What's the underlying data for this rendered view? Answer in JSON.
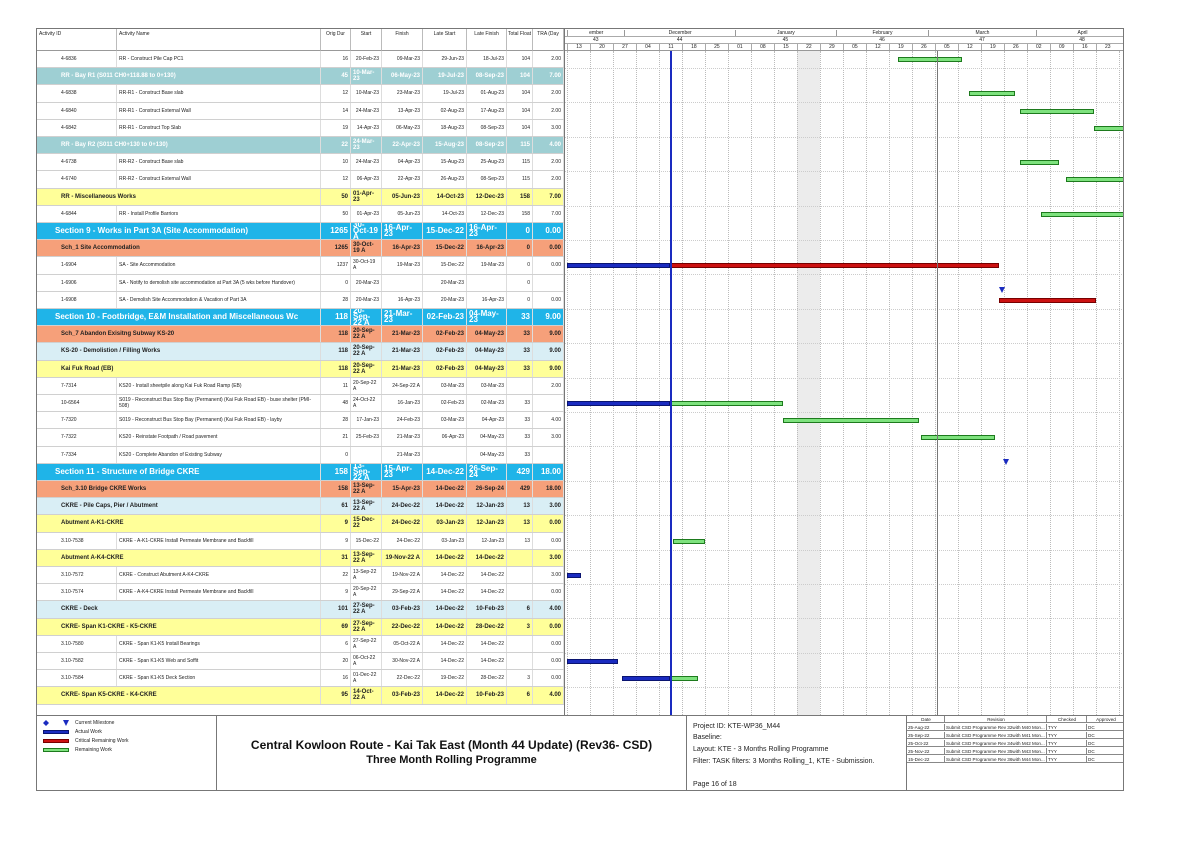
{
  "columns": [
    "Activity ID",
    "Activity Name",
    "Orig Dur",
    "Start",
    "Finish",
    "Late Start",
    "Late Finish",
    "Total Float",
    "TRA (Day"
  ],
  "timeline": {
    "months": [
      "ember",
      "December",
      "January",
      "February",
      "March",
      "April"
    ],
    "weeks": [
      "43",
      "44",
      "45",
      "46",
      "47",
      "48"
    ],
    "days": [
      "13",
      "20",
      "27",
      "04",
      "11",
      "18",
      "25",
      "01",
      "08",
      "15",
      "22",
      "29",
      "05",
      "12",
      "19",
      "26",
      "05",
      "12",
      "19",
      "26",
      "02",
      "09",
      "16",
      "23"
    ]
  },
  "rows": [
    {
      "type": "task",
      "id": "4-6836",
      "name": "RR - Construct Pile Cap PC1",
      "dur": "16",
      "start": "20-Feb-23",
      "finish": "09-Mar-23",
      "ls": "29-Jun-23",
      "lf": "18-Jul-23",
      "tf": "104",
      "tra": "2.00"
    },
    {
      "type": "teal",
      "name": "RR - Bay R1 (S011 CH0+118.88 to 0+130)",
      "dur": "45",
      "start": "10-Mar-23",
      "finish": "06-May-23",
      "ls": "19-Jul-23",
      "lf": "08-Sep-23",
      "tf": "104",
      "tra": "7.00"
    },
    {
      "type": "task",
      "id": "4-6838",
      "name": "RR-R1 - Construct Base slab",
      "dur": "12",
      "start": "10-Mar-23",
      "finish": "23-Mar-23",
      "ls": "19-Jul-23",
      "lf": "01-Aug-23",
      "tf": "104",
      "tra": "2.00"
    },
    {
      "type": "task",
      "id": "4-6840",
      "name": "RR-R1 - Construct External Wall",
      "dur": "14",
      "start": "24-Mar-23",
      "finish": "13-Apr-23",
      "ls": "02-Aug-23",
      "lf": "17-Aug-23",
      "tf": "104",
      "tra": "2.00"
    },
    {
      "type": "task",
      "id": "4-6842",
      "name": "RR-R1 - Construct Top Slab",
      "dur": "19",
      "start": "14-Apr-23",
      "finish": "06-May-23",
      "ls": "18-Aug-23",
      "lf": "08-Sep-23",
      "tf": "104",
      "tra": "3.00"
    },
    {
      "type": "teal",
      "name": "RR - Bay R2 (S011 CH0+130 to 0+130)",
      "dur": "22",
      "start": "24-Mar-23",
      "finish": "22-Apr-23",
      "ls": "15-Aug-23",
      "lf": "08-Sep-23",
      "tf": "115",
      "tra": "4.00"
    },
    {
      "type": "task",
      "id": "4-6738",
      "name": "RR-R2 - Construct Base slab",
      "dur": "10",
      "start": "24-Mar-23",
      "finish": "04-Apr-23",
      "ls": "15-Aug-23",
      "lf": "25-Aug-23",
      "tf": "115",
      "tra": "2.00"
    },
    {
      "type": "task",
      "id": "4-6740",
      "name": "RR-R2 - Construct External Wall",
      "dur": "12",
      "start": "06-Apr-23",
      "finish": "22-Apr-23",
      "ls": "26-Aug-23",
      "lf": "08-Sep-23",
      "tf": "115",
      "tra": "2.00"
    },
    {
      "type": "yel",
      "name": "RR - Miscellaneous Works",
      "dur": "50",
      "start": "01-Apr-23",
      "finish": "05-Jun-23",
      "ls": "14-Oct-23",
      "lf": "12-Dec-23",
      "tf": "158",
      "tra": "7.00"
    },
    {
      "type": "task",
      "id": "4-6844",
      "name": "RR - Install Profile Barriors",
      "dur": "50",
      "start": "01-Apr-23",
      "finish": "05-Jun-23",
      "ls": "14-Oct-23",
      "lf": "12-Dec-23",
      "tf": "158",
      "tra": "7.00"
    },
    {
      "type": "sec",
      "name": "Section 9 - Works in Part 3A (Site Accommodation)",
      "dur": "1265",
      "start": "30-Oct-19 A",
      "finish": "16-Apr-23",
      "ls": "15-Dec-22",
      "lf": "16-Apr-23",
      "tf": "0",
      "tra": "0.00"
    },
    {
      "type": "sch",
      "name": "Sch_1 Site Accommodation",
      "dur": "1265",
      "start": "30-Oct-19 A",
      "finish": "16-Apr-23",
      "ls": "15-Dec-22",
      "lf": "16-Apr-23",
      "tf": "0",
      "tra": "0.00"
    },
    {
      "type": "task",
      "id": "1-6904",
      "name": "SA - Site Accommodation",
      "dur": "1237",
      "start": "30-Oct-19 A",
      "finish": "19-Mar-23",
      "ls": "15-Dec-22",
      "lf": "19-Mar-23",
      "tf": "0",
      "tra": "0.00"
    },
    {
      "type": "task",
      "id": "1-6906",
      "name": "SA - Notify to demolish site accommodation at Part 3A (5 wks before Handover)",
      "dur": "0",
      "start": "20-Mar-23",
      "finish": "",
      "ls": "20-Mar-23",
      "lf": "",
      "tf": "0",
      "tra": ""
    },
    {
      "type": "task",
      "id": "1-6908",
      "name": "SA - Demolish Site Accommodation & Vacation of Part 3A",
      "dur": "28",
      "start": "20-Mar-23",
      "finish": "16-Apr-23",
      "ls": "20-Mar-23",
      "lf": "16-Apr-23",
      "tf": "0",
      "tra": "0.00"
    },
    {
      "type": "sec",
      "name": "Section 10 - Footbridge, E&M Installation and Miscellaneous Wc",
      "dur": "118",
      "start": "20-Sep-22 A",
      "finish": "21-Mar-23",
      "ls": "02-Feb-23",
      "lf": "04-May-23",
      "tf": "33",
      "tra": "9.00"
    },
    {
      "type": "sch",
      "name": "Sch_7 Abandon Exisitng Subway KS-20",
      "dur": "118",
      "start": "20-Sep-22 A",
      "finish": "21-Mar-23",
      "ls": "02-Feb-23",
      "lf": "04-May-23",
      "tf": "33",
      "tra": "9.00"
    },
    {
      "type": "sub",
      "name": "KS-20 - Demolistion / Filling Works",
      "dur": "118",
      "start": "20-Sep-22 A",
      "finish": "21-Mar-23",
      "ls": "02-Feb-23",
      "lf": "04-May-23",
      "tf": "33",
      "tra": "9.00"
    },
    {
      "type": "yel",
      "name": "Kai Fuk Road (EB)",
      "dur": "118",
      "start": "20-Sep-22 A",
      "finish": "21-Mar-23",
      "ls": "02-Feb-23",
      "lf": "04-May-23",
      "tf": "33",
      "tra": "9.00"
    },
    {
      "type": "task",
      "id": "7-7314",
      "name": "KS20 - Install sheetpile along Kai Fuk Road Ramp (EB)",
      "dur": "11",
      "start": "20-Sep-22 A",
      "finish": "24-Sep-22 A",
      "ls": "03-Mar-23",
      "lf": "03-Mar-23",
      "tf": "",
      "tra": "2.00"
    },
    {
      "type": "task",
      "id": "10-6564",
      "name": "S019 - Reconstruct Bus Stop Bay (Permanent) (Kai Fuk Road EB) - buse shelter (PMI-508)",
      "dur": "48",
      "start": "24-Oct-22 A",
      "finish": "16-Jan-23",
      "ls": "02-Feb-23",
      "lf": "02-Mar-23",
      "tf": "33",
      "tra": ""
    },
    {
      "type": "task",
      "id": "7-7320",
      "name": "S019 - Reconstruct Bus Stop Bay (Permanent) (Kai Fuk Road EB) - layby",
      "dur": "28",
      "start": "17-Jan-23",
      "finish": "24-Feb-23",
      "ls": "03-Mar-23",
      "lf": "04-Apr-23",
      "tf": "33",
      "tra": "4.00"
    },
    {
      "type": "task",
      "id": "7-7322",
      "name": "KS20 - Reinstate Footpath / Road pavement",
      "dur": "21",
      "start": "25-Feb-23",
      "finish": "21-Mar-23",
      "ls": "06-Apr-23",
      "lf": "04-May-23",
      "tf": "33",
      "tra": "3.00"
    },
    {
      "type": "task",
      "id": "7-7334",
      "name": "KS20 - Complete Abandon of Existing Subway",
      "dur": "0",
      "start": "",
      "finish": "21-Mar-23",
      "ls": "",
      "lf": "04-May-23",
      "tf": "33",
      "tra": ""
    },
    {
      "type": "sec",
      "name": "Section 11 - Structure of Bridge CKRE",
      "dur": "158",
      "start": "13-Sep-22 A",
      "finish": "15-Apr-23",
      "ls": "14-Dec-22",
      "lf": "26-Sep-24",
      "tf": "429",
      "tra": "18.00"
    },
    {
      "type": "sch",
      "name": "Sch_3.10 Bridge CKRE Works",
      "dur": "158",
      "start": "13-Sep-22 A",
      "finish": "15-Apr-23",
      "ls": "14-Dec-22",
      "lf": "26-Sep-24",
      "tf": "429",
      "tra": "18.00"
    },
    {
      "type": "sub",
      "name": "CKRE - Pile Caps, Pier / Abutment",
      "dur": "61",
      "start": "13-Sep-22 A",
      "finish": "24-Dec-22",
      "ls": "14-Dec-22",
      "lf": "12-Jan-23",
      "tf": "13",
      "tra": "3.00"
    },
    {
      "type": "yel",
      "name": "Abutment A-K1-CKRE",
      "dur": "9",
      "start": "15-Dec-22",
      "finish": "24-Dec-22",
      "ls": "03-Jan-23",
      "lf": "12-Jan-23",
      "tf": "13",
      "tra": "0.00"
    },
    {
      "type": "task",
      "id": "3.10-7538",
      "name": "CKRE - A-K1-CKRE Install Permeate Membrane and Backfill",
      "dur": "9",
      "start": "15-Dec-22",
      "finish": "24-Dec-22",
      "ls": "03-Jan-23",
      "lf": "12-Jan-23",
      "tf": "13",
      "tra": "0.00"
    },
    {
      "type": "yel",
      "name": "Abutment A-K4-CKRE",
      "dur": "31",
      "start": "13-Sep-22 A",
      "finish": "19-Nov-22 A",
      "ls": "14-Dec-22",
      "lf": "14-Dec-22",
      "tf": "",
      "tra": "3.00"
    },
    {
      "type": "task",
      "id": "3.10-7572",
      "name": "CKRE - Construct Abutment A-K4-CKRE",
      "dur": "22",
      "start": "13-Sep-22 A",
      "finish": "19-Nov-22 A",
      "ls": "14-Dec-22",
      "lf": "14-Dec-22",
      "tf": "",
      "tra": "3.00"
    },
    {
      "type": "task",
      "id": "3.10-7574",
      "name": "CKRE - A-K4-CKRE Install Permeate Membrane and Backfill",
      "dur": "9",
      "start": "20-Sep-22 A",
      "finish": "29-Sep-22 A",
      "ls": "14-Dec-22",
      "lf": "14-Dec-22",
      "tf": "",
      "tra": "0.00"
    },
    {
      "type": "sub",
      "name": "CKRE - Deck",
      "dur": "101",
      "start": "27-Sep-22 A",
      "finish": "03-Feb-23",
      "ls": "14-Dec-22",
      "lf": "10-Feb-23",
      "tf": "6",
      "tra": "4.00"
    },
    {
      "type": "yel",
      "name": "CKRE- Span K1-CKRE - K5-CKRE",
      "dur": "69",
      "start": "27-Sep-22 A",
      "finish": "22-Dec-22",
      "ls": "14-Dec-22",
      "lf": "28-Dec-22",
      "tf": "3",
      "tra": "0.00"
    },
    {
      "type": "task",
      "id": "3.10-7580",
      "name": "CKRE - Span K1-K5 Install Bearings",
      "dur": "6",
      "start": "27-Sep-22 A",
      "finish": "05-Oct-22 A",
      "ls": "14-Dec-22",
      "lf": "14-Dec-22",
      "tf": "",
      "tra": "0.00"
    },
    {
      "type": "task",
      "id": "3.10-7582",
      "name": "CKRE - Span K1-K5 Web and Soffit",
      "dur": "20",
      "start": "06-Oct-22 A",
      "finish": "30-Nov-22 A",
      "ls": "14-Dec-22",
      "lf": "14-Dec-22",
      "tf": "",
      "tra": "0.00"
    },
    {
      "type": "task",
      "id": "3.10-7584",
      "name": "CKRE - Span K1-K5 Deck Section",
      "dur": "16",
      "start": "01-Dec-22 A",
      "finish": "22-Dec-22",
      "ls": "19-Dec-22",
      "lf": "28-Dec-22",
      "tf": "3",
      "tra": "0.00"
    },
    {
      "type": "yel",
      "name": "CKRE- Span K5-CKRE - K4-CKRE",
      "dur": "95",
      "start": "14-Oct-22 A",
      "finish": "03-Feb-23",
      "ls": "14-Dec-22",
      "lf": "10-Feb-23",
      "tf": "6",
      "tra": "4.00"
    }
  ],
  "legend": [
    "Current Milestone",
    "Actual Work",
    "Critical Remaining Work",
    "Remaining Work"
  ],
  "title": {
    "line1": "Central Kowloon Route - Kai Tak East (Month 44 Update) (Rev36- CSD)",
    "line2": "Three Month Rolling Programme"
  },
  "info": {
    "project": "Project ID: KTE-WP36_M44",
    "baseline": "Baseline:",
    "layout": "Layout: KTE - 3 Months Rolling Programme",
    "filter": "Filter: TASK filters: 3 Months Rolling_1, KTE - Submission.",
    "page": "Page 16 of 18"
  },
  "revision": {
    "headers": [
      "Date",
      "Revision",
      "Checked",
      "Approved"
    ],
    "rows": [
      [
        "25-Aug-22",
        "Submit CSD Programme Rev 32with M40 Mon...",
        "TYY",
        "DC"
      ],
      [
        "25-Sep-22",
        "Submit CSD Programme Rev 33with M41 Mon...",
        "TYY",
        "DC"
      ],
      [
        "25-Oct-22",
        "Submit CSD Programme Rev 34with M42 Mon...",
        "TYY",
        "DC"
      ],
      [
        "25-Nov-22",
        "Submit CSD Programme Rev 35with M43 Mon...",
        "TYY",
        "DC"
      ],
      [
        "15-Dec-22",
        "Submit CSD Programme Rev 36with M44 Mon...",
        "TYY",
        "DC"
      ]
    ]
  },
  "colors": {
    "remaining": "#7ee27e",
    "actual": "#1a2bc0",
    "critical": "#cc1111",
    "section": "#1fb4e8",
    "schedule": "#f6a07a",
    "subgroup": "#d9eef5",
    "yellow": "#ffff99"
  }
}
